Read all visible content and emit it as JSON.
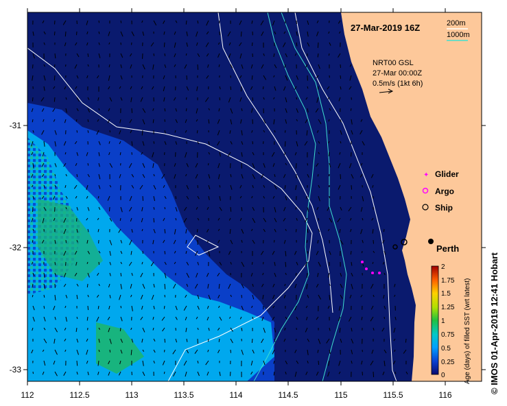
{
  "map": {
    "title": "27-Mar-2019 16Z",
    "contours": {
      "label_shallow": "200m",
      "label_deep": "1000m",
      "color_shallow": "#ffffff",
      "color_deep": "#40e0d0"
    },
    "currents": {
      "product": "NRT00 GSL",
      "time": "27-Mar 00:00Z",
      "scale": "0.5m/s (1kt 6h)"
    },
    "legend": {
      "glider": "Glider",
      "argo": "Argo",
      "ship": "Ship"
    },
    "place": "Perth",
    "lon_ticks": [
      "112",
      "112.5",
      "113",
      "113.5",
      "114",
      "114.5",
      "115",
      "115.5",
      "116"
    ],
    "lat_ticks": [
      "-31",
      "-32",
      "-33"
    ],
    "colorbar": {
      "label": "Age (days) of filled SST (wrt latest)",
      "ticks": [
        "0",
        "0.25",
        "0.5",
        "0.75",
        "1",
        "1.25",
        "1.5",
        "1.75",
        "2"
      ]
    },
    "credit": "© IMOS 01-Apr-2019 12:41 Hobart",
    "colors": {
      "ocean": "#0a1a6e",
      "land": "#fdc89a",
      "glider": "#ff00ff"
    }
  }
}
